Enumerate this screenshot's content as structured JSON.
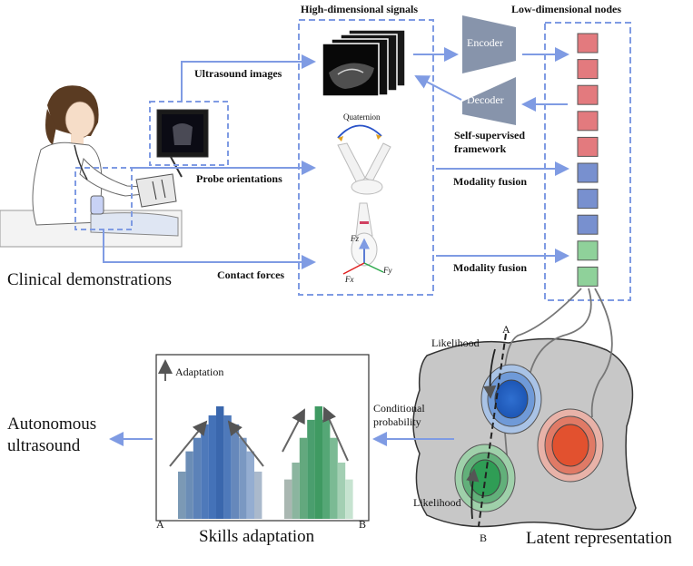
{
  "headers": {
    "high_dimensional": "High-dimensional signals",
    "low_dimensional": "Low-dimensional nodes"
  },
  "left": {
    "clinical": "Clinical demonstrations",
    "ultrasound_images": "Ultrasound images",
    "probe_orientations": "Probe orientations",
    "contact_forces": "Contact forces"
  },
  "signals": {
    "quaternion": "Quaternion",
    "fz": "Fz",
    "fx": "Fx",
    "fy": "Fy"
  },
  "autoencoder": {
    "encoder": "Encoder",
    "decoder": "Decoder",
    "self_supervised_line1": "Self-supervised",
    "self_supervised_line2": "framework"
  },
  "fusion": {
    "modality_fusion_1": "Modality fusion",
    "modality_fusion_2": "Modality fusion"
  },
  "nodes": {
    "colors": [
      "#e37a7e",
      "#e37a7e",
      "#e37a7e",
      "#e37a7e",
      "#e37a7e",
      "#7890cf",
      "#7890cf",
      "#7890cf",
      "#8fd19a",
      "#8fd19a"
    ]
  },
  "latent": {
    "likelihood_top": "Likelihood",
    "likelihood_bottom": "Likelihood",
    "point_a": "A",
    "point_b": "B",
    "title": "Latent representation",
    "conditional_line1": "Conditional",
    "conditional_line2": "probability"
  },
  "skills": {
    "adaptation": "Adaptation",
    "axis_a": "A",
    "axis_b": "B",
    "title": "Skills adaptation",
    "blue_bars": [
      0.42,
      0.6,
      0.72,
      0.84,
      0.92,
      1.0,
      0.92,
      0.84,
      0.72,
      0.6,
      0.42
    ],
    "green_bars": [
      0.35,
      0.5,
      0.72,
      0.88,
      1.0,
      0.88,
      0.72,
      0.5,
      0.35
    ],
    "blue_colors": [
      "#7b99b5",
      "#6b8db6",
      "#5c82b8",
      "#4e79ba",
      "#4472b8",
      "#3a67ad",
      "#4e79ba",
      "#6688bb",
      "#7a98c2",
      "#94add1",
      "#aab9cc"
    ],
    "green_colors": [
      "#a9b7b1",
      "#8bb59f",
      "#63a87e",
      "#4a9e6e",
      "#3f9a62",
      "#55a776",
      "#7bba94",
      "#a3cfb3",
      "#c6e3d0"
    ]
  },
  "output": {
    "line1": "Autonomous",
    "line2": "ultrasound"
  }
}
